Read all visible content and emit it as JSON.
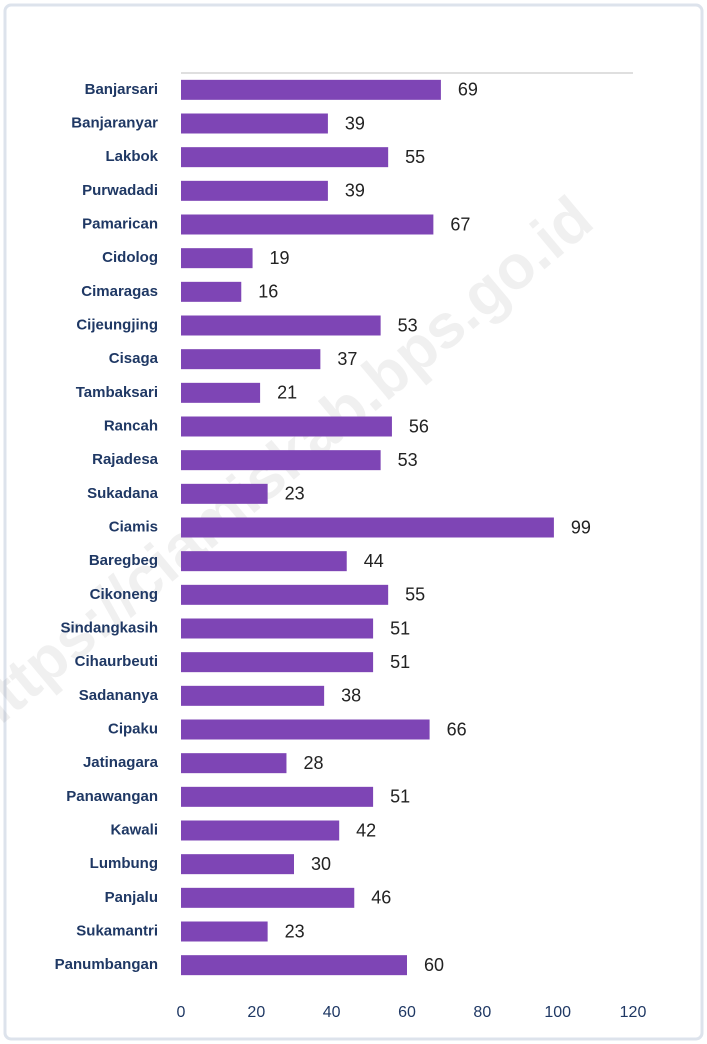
{
  "chart_data": {
    "type": "bar",
    "orientation": "horizontal",
    "watermark": "https://ciamiskab.bps.go.id",
    "categories": [
      "Banjarsari",
      "Banjaranyar",
      "Lakbok",
      "Purwadadi",
      "Pamarican",
      "Cidolog",
      "Cimaragas",
      "Cijeungjing",
      "Cisaga",
      "Tambaksari",
      "Rancah",
      "Rajadesa",
      "Sukadana",
      "Ciamis",
      "Baregbeg",
      "Cikoneng",
      "Sindangkasih",
      "Cihaurbeuti",
      "Sadananya",
      "Cipaku",
      "Jatinagara",
      "Panawangan",
      "Kawali",
      "Lumbung",
      "Panjalu",
      "Sukamantri",
      "Panumbangan"
    ],
    "values": [
      69,
      39,
      55,
      39,
      67,
      19,
      16,
      53,
      37,
      21,
      56,
      53,
      23,
      99,
      44,
      55,
      51,
      51,
      38,
      66,
      28,
      51,
      42,
      30,
      46,
      23,
      60
    ],
    "color": "#7e45b5",
    "xlim": [
      0,
      120
    ],
    "xticks": [
      0,
      20,
      40,
      60,
      80,
      100,
      120
    ]
  }
}
